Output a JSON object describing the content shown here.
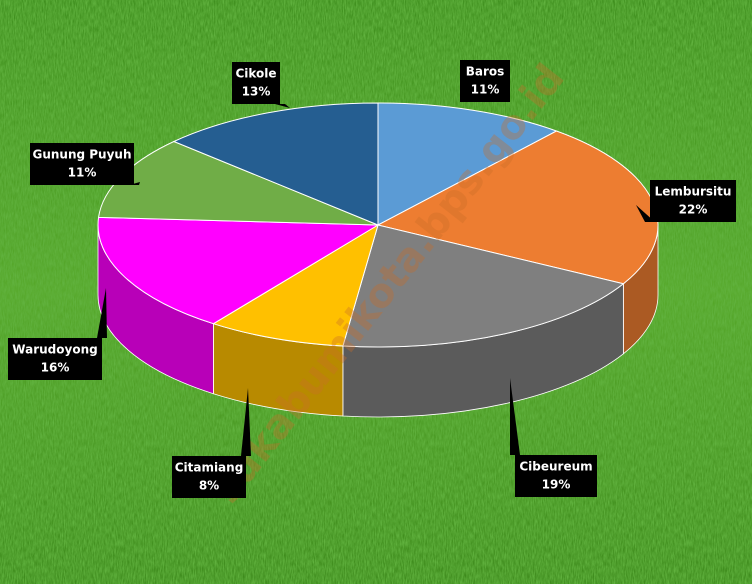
{
  "chart_data": {
    "type": "pie3d",
    "categories": [
      "Baros",
      "Lembursitu",
      "Cibeureum",
      "Citamiang",
      "Warudoyong",
      "Gunung Puyuh",
      "Cikole"
    ],
    "values": [
      11,
      22,
      19,
      8,
      16,
      11,
      13
    ],
    "value_labels": [
      "11%",
      "22%",
      "19%",
      "8%",
      "16%",
      "11%",
      "13%"
    ],
    "colors": [
      "#5b9bd5",
      "#ed7d31",
      "#7f7f7f",
      "#ffc000",
      "#ff00ff",
      "#70ad47",
      "#255e91"
    ],
    "watermark": "sukabumikota.bps.go.id"
  }
}
